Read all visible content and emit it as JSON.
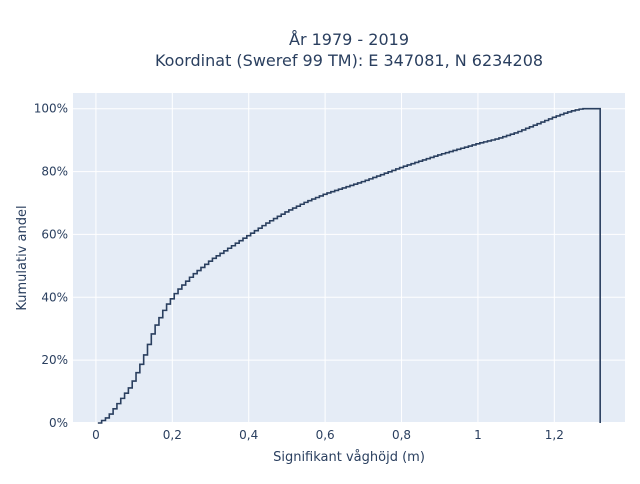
{
  "chart_data": {
    "type": "line",
    "step": true,
    "cumulative": true,
    "title_line1": "År 1979 - 2019",
    "title_line2": "Koordinat (Sweref 99 TM): E 347081, N 6234208",
    "xlabel": "Signifikant våghöjd (m)",
    "ylabel": "Kumulativ andel",
    "x_ticks": [
      {
        "value": 0,
        "label": "0"
      },
      {
        "value": 0.2,
        "label": "0,2"
      },
      {
        "value": 0.4,
        "label": "0,4"
      },
      {
        "value": 0.6,
        "label": "0,6"
      },
      {
        "value": 0.8,
        "label": "0,8"
      },
      {
        "value": 1.0,
        "label": "1"
      },
      {
        "value": 1.2,
        "label": "1,2"
      }
    ],
    "y_ticks": [
      {
        "value": 0,
        "label": "0%"
      },
      {
        "value": 0.2,
        "label": "20%"
      },
      {
        "value": 0.4,
        "label": "40%"
      },
      {
        "value": 0.6,
        "label": "60%"
      },
      {
        "value": 0.8,
        "label": "80%"
      },
      {
        "value": 1.0,
        "label": "100%"
      }
    ],
    "xlim": [
      -0.06,
      1.385
    ],
    "ylim": [
      0,
      1.05
    ],
    "grid": true,
    "background_color": "#e5ecf6",
    "line_color": "#2a3f5f",
    "series": [
      {
        "x": [
          0.005,
          0.03,
          0.06,
          0.09,
          0.12,
          0.15,
          0.18,
          0.21,
          0.25,
          0.3,
          0.35,
          0.4,
          0.45,
          0.5,
          0.55,
          0.6,
          0.7,
          0.8,
          0.9,
          1.0,
          1.05,
          1.1,
          1.15,
          1.2,
          1.24,
          1.27,
          1.3,
          1.32
        ],
        "y": [
          0.0,
          0.02,
          0.07,
          0.12,
          0.2,
          0.3,
          0.37,
          0.42,
          0.47,
          0.52,
          0.56,
          0.6,
          0.64,
          0.675,
          0.705,
          0.73,
          0.77,
          0.815,
          0.855,
          0.89,
          0.905,
          0.925,
          0.95,
          0.975,
          0.992,
          1.0,
          1.0,
          1.0
        ]
      }
    ]
  }
}
